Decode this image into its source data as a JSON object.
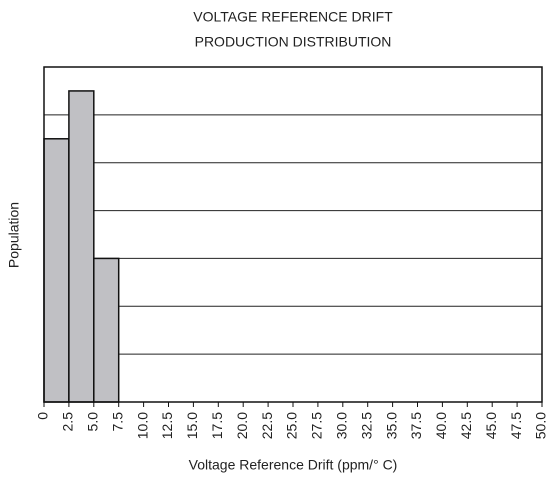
{
  "chart_data": {
    "type": "histogram",
    "title": [
      "VOLTAGE REFERENCE DRIFT",
      "PRODUCTION DISTRIBUTION"
    ],
    "xlabel": "Voltage Reference Drift (ppm/° C)",
    "ylabel": "Population",
    "bins": [
      0,
      2.5,
      5,
      7.5,
      10,
      12.5,
      15,
      17.5,
      20,
      22.5,
      25,
      27.5,
      30,
      32.5,
      35,
      37.5,
      40,
      42.5,
      45,
      47.5,
      50
    ],
    "values": [
      5.5,
      6.5,
      3,
      0,
      0,
      0,
      0,
      0,
      0,
      0,
      0,
      0,
      0,
      0,
      0,
      0,
      0,
      0,
      0,
      0
    ],
    "color": "#c0c0c4",
    "xlim": [
      0,
      50
    ],
    "xticks": [
      0,
      2.5,
      {
        "value": 5,
        "label": "5.0"
      },
      7.5,
      {
        "value": 10,
        "label": "10.0"
      },
      12.5,
      {
        "value": 15,
        "label": "15.0"
      },
      17.5,
      {
        "value": 20,
        "label": "20.0"
      },
      22.5,
      {
        "value": 25,
        "label": "25.0"
      },
      27.5,
      {
        "value": 30,
        "label": "30.0"
      },
      32.5,
      {
        "value": 35,
        "label": "35.0"
      },
      37.5,
      {
        "value": 40,
        "label": "40.0"
      },
      42.5,
      {
        "value": 45,
        "label": "45.0"
      },
      47.5,
      {
        "value": 50,
        "label": "50.0"
      }
    ],
    "ylim": [
      0,
      7
    ],
    "yticks": [
      0,
      1,
      2,
      3,
      4,
      5,
      6,
      7
    ],
    "grid": true
  }
}
